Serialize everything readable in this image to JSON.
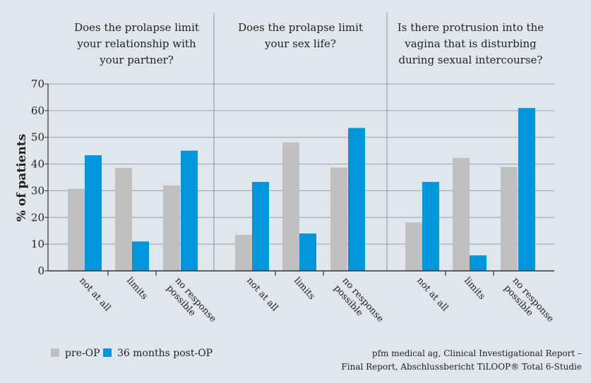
{
  "chart_data": {
    "type": "bar",
    "ylabel": "% of patients",
    "ylim": [
      0,
      70
    ],
    "yticks": [
      0,
      10,
      20,
      30,
      40,
      50,
      60,
      70
    ],
    "grid": true,
    "legend_placement": "bottom-left",
    "colors": {
      "pre-OP": "#c0c0c0",
      "36 months post-OP": "#0096db"
    },
    "legend": [
      "pre-OP",
      "36 months post-OP"
    ],
    "panels": [
      {
        "title_lines": [
          "Does the prolapse limit",
          "your relationship with",
          "your partner?"
        ],
        "categories": [
          [
            "not at all"
          ],
          [
            "limits"
          ],
          [
            "no response",
            "possible"
          ]
        ],
        "series": [
          {
            "name": "pre-OP",
            "values": [
              30.7,
              38.5,
              32.0
            ]
          },
          {
            "name": "36 months post-OP",
            "values": [
              43.3,
              11.0,
              45.0
            ]
          }
        ]
      },
      {
        "title_lines": [
          "Does the prolapse limit",
          "your sex life?"
        ],
        "categories": [
          [
            "not at all"
          ],
          [
            "limits"
          ],
          [
            "no response",
            "possible"
          ]
        ],
        "series": [
          {
            "name": "pre-OP",
            "values": [
              13.5,
              48.1,
              38.7
            ]
          },
          {
            "name": "36 months post-OP",
            "values": [
              33.3,
              14.0,
              53.5
            ]
          }
        ]
      },
      {
        "title_lines": [
          "Is there protrusion into the",
          "vagina that is disturbing",
          "during sexual intercourse?"
        ],
        "categories": [
          [
            "not at all"
          ],
          [
            "limits"
          ],
          [
            "no response",
            "possible"
          ]
        ],
        "series": [
          {
            "name": "pre-OP",
            "values": [
              18.1,
              42.3,
              38.9
            ]
          },
          {
            "name": "36 months post-OP",
            "values": [
              33.3,
              5.8,
              61.0
            ]
          }
        ]
      }
    ]
  },
  "source_lines": [
    "pfm medical ag, Clinical Investigational Report –",
    "Final Report, Abschlussbericht TiLOOP® Total 6-Studie"
  ]
}
